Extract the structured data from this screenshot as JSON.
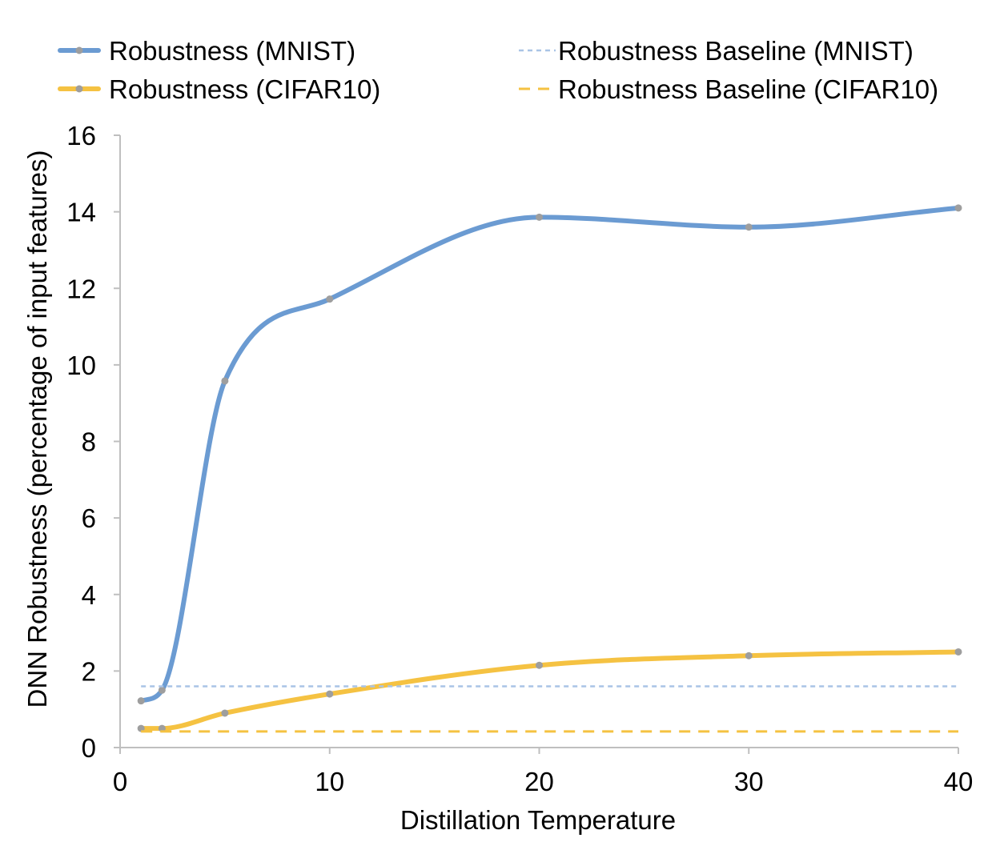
{
  "chart_data": {
    "type": "line",
    "xlabel": "Distillation Temperature",
    "ylabel": "DNN Robustness (percentage of input features)",
    "xlim": [
      0,
      40
    ],
    "ylim": [
      0,
      16
    ],
    "xticks": [
      0,
      10,
      20,
      30,
      40
    ],
    "yticks": [
      0,
      2,
      4,
      6,
      8,
      10,
      12,
      14,
      16
    ],
    "grid": false,
    "legend_position": "top",
    "series": [
      {
        "name": "Robustness (MNIST)",
        "style": "solid-smooth",
        "color": "#6b9bd2",
        "x": [
          1,
          2,
          5,
          10,
          20,
          30,
          40
        ],
        "y": [
          1.22,
          1.5,
          9.58,
          11.72,
          13.86,
          13.6,
          14.1
        ]
      },
      {
        "name": "Robustness (CIFAR10)",
        "style": "solid-smooth",
        "color": "#f5c242",
        "x": [
          1,
          2,
          5,
          10,
          20,
          30,
          40
        ],
        "y": [
          0.5,
          0.5,
          0.9,
          1.4,
          2.15,
          2.4,
          2.5
        ]
      },
      {
        "name": "Robustness Baseline (MNIST)",
        "style": "dotted",
        "color": "#a9c4e6",
        "x": [
          1,
          40
        ],
        "y": [
          1.6,
          1.6
        ]
      },
      {
        "name": "Robustness Baseline (CIFAR10)",
        "style": "dashed",
        "color": "#f5c242",
        "x": [
          1,
          40
        ],
        "y": [
          0.42,
          0.42
        ]
      }
    ],
    "marker_color": "#9e9e9e"
  }
}
